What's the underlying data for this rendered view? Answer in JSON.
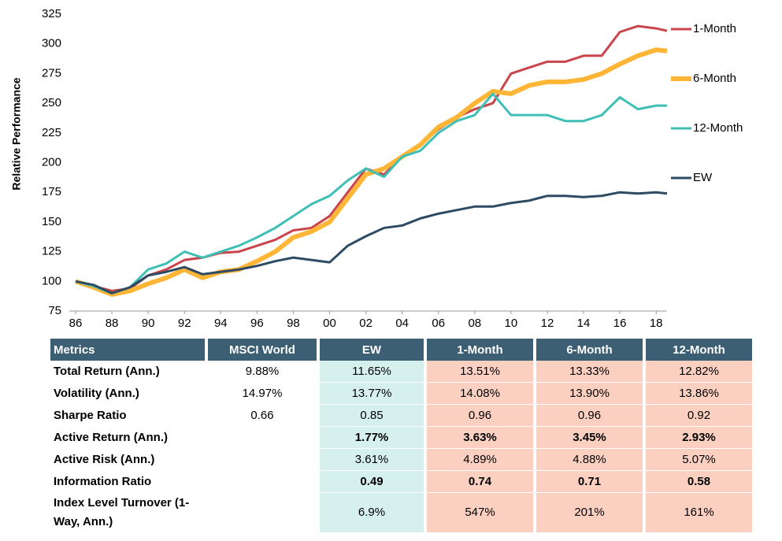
{
  "chart_data": {
    "type": "line",
    "y_label": "Relative Performance",
    "x": [
      1986,
      1987,
      1988,
      1989,
      1990,
      1991,
      1992,
      1993,
      1994,
      1995,
      1996,
      1997,
      1998,
      1999,
      2000,
      2001,
      2002,
      2003,
      2004,
      2005,
      2006,
      2007,
      2008,
      2009,
      2010,
      2011,
      2012,
      2013,
      2014,
      2015,
      2016,
      2017,
      2018,
      2018.6
    ],
    "series": [
      {
        "name": "1-Month",
        "color": "#c8454c",
        "width": 3,
        "values": [
          100,
          96,
          92,
          94,
          105,
          110,
          118,
          120,
          124,
          125,
          130,
          135,
          143,
          145,
          155,
          175,
          195,
          190,
          205,
          215,
          228,
          238,
          245,
          250,
          275,
          280,
          285,
          285,
          290,
          290,
          310,
          315,
          313,
          311
        ]
      },
      {
        "name": "6-Month",
        "color": "#ffb637",
        "width": 6,
        "values": [
          100,
          95,
          89,
          92,
          98,
          103,
          110,
          103,
          108,
          110,
          117,
          125,
          137,
          142,
          150,
          170,
          190,
          195,
          205,
          215,
          230,
          238,
          250,
          260,
          258,
          265,
          268,
          268,
          270,
          275,
          283,
          290,
          295,
          294
        ]
      },
      {
        "name": "12-Month",
        "color": "#3fbfb5",
        "width": 3,
        "values": [
          100,
          96,
          90,
          95,
          110,
          115,
          125,
          120,
          125,
          130,
          137,
          145,
          155,
          165,
          172,
          185,
          195,
          188,
          205,
          210,
          225,
          235,
          240,
          258,
          240,
          240,
          240,
          235,
          235,
          240,
          255,
          245,
          248,
          248
        ]
      },
      {
        "name": "EW",
        "color": "#2e4b63",
        "width": 3,
        "values": [
          100,
          97,
          90,
          95,
          105,
          108,
          112,
          106,
          108,
          110,
          113,
          117,
          120,
          118,
          116,
          130,
          138,
          145,
          147,
          153,
          157,
          160,
          163,
          163,
          166,
          168,
          172,
          172,
          171,
          172,
          175,
          174,
          175,
          174
        ]
      }
    ],
    "xlim": [
      1986,
      2018.6
    ],
    "xticks": [
      {
        "value": 1986,
        "label": "86"
      },
      {
        "value": 1988,
        "label": "88"
      },
      {
        "value": 1990,
        "label": "90"
      },
      {
        "value": 1992,
        "label": "92"
      },
      {
        "value": 1994,
        "label": "94"
      },
      {
        "value": 1996,
        "label": "96"
      },
      {
        "value": 1998,
        "label": "98"
      },
      {
        "value": 2000,
        "label": "00"
      },
      {
        "value": 2002,
        "label": "02"
      },
      {
        "value": 2004,
        "label": "04"
      },
      {
        "value": 2006,
        "label": "06"
      },
      {
        "value": 2008,
        "label": "08"
      },
      {
        "value": 2010,
        "label": "10"
      },
      {
        "value": 2012,
        "label": "12"
      },
      {
        "value": 2014,
        "label": "14"
      },
      {
        "value": 2016,
        "label": "16"
      },
      {
        "value": 2018,
        "label": "18"
      }
    ],
    "ylim": [
      75,
      325
    ],
    "yticks": [
      75,
      100,
      125,
      150,
      175,
      200,
      225,
      250,
      275,
      300,
      325
    ],
    "legend": "right"
  },
  "table": {
    "header": [
      "Metrics",
      "MSCI World",
      "EW",
      "1-Month",
      "6-Month",
      "12-Month"
    ],
    "rows": [
      [
        "Total Return (Ann.)",
        "9.88%",
        "11.65%",
        "13.51%",
        "13.33%",
        "12.82%"
      ],
      [
        "Volatility (Ann.)",
        "14.97%",
        "13.77%",
        "14.08%",
        "13.90%",
        "13.86%"
      ],
      [
        "Sharpe Ratio",
        "0.66",
        "0.85",
        "0.96",
        "0.96",
        "0.92"
      ],
      [
        "Active Return (Ann.)",
        null,
        "1.77%",
        "3.63%",
        "3.45%",
        "2.93%"
      ],
      [
        "Active Risk (Ann.)",
        null,
        "3.61%",
        "4.89%",
        "4.88%",
        "5.07%"
      ],
      [
        "Information Ratio",
        null,
        "0.49",
        "0.74",
        "0.71",
        "0.58"
      ],
      [
        "Index Level Turnover (1-Way, Ann.)",
        null,
        "6.9%",
        "547%",
        "201%",
        "161%"
      ]
    ]
  }
}
